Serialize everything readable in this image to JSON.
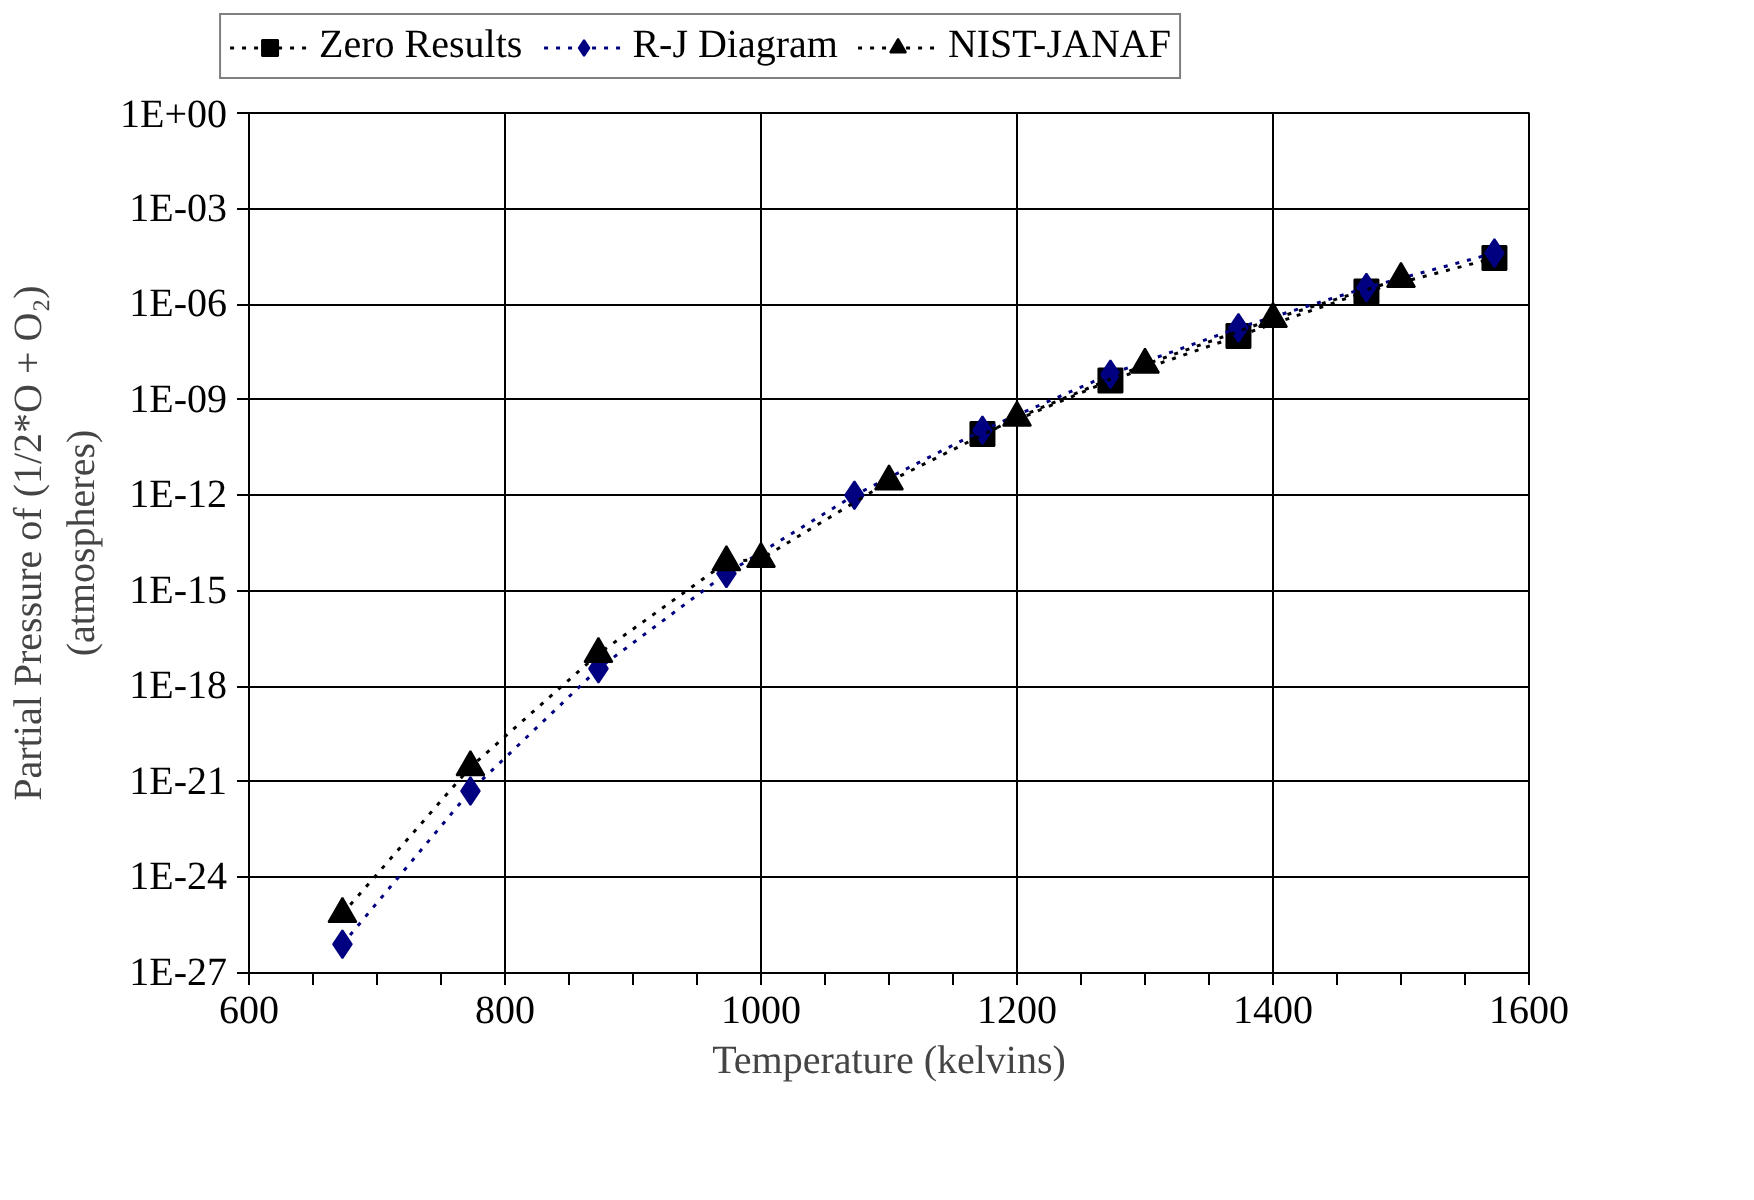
{
  "chart_data": {
    "type": "line",
    "xlabel": "Temperature (kelvins)",
    "ylabel": "Partial Pressure of (1/2*O + O₂)\n(atmospheres)",
    "log": "y",
    "grid": true,
    "legend": "top",
    "line_style": "dotted",
    "xlim": [
      600,
      1600
    ],
    "xticks": [
      600,
      800,
      1000,
      1200,
      1400,
      1600
    ],
    "ylim": [
      1e-27,
      1
    ],
    "yticks": [
      {
        "value": 1,
        "label": "1E+00"
      },
      {
        "value": 0.001,
        "label": "1E-03"
      },
      {
        "value": 1e-06,
        "label": "1E-06"
      },
      {
        "value": 1e-09,
        "label": "1E-09"
      },
      {
        "value": 1e-12,
        "label": "1E-12"
      },
      {
        "value": 1e-15,
        "label": "1E-15"
      },
      {
        "value": 1e-18,
        "label": "1E-18"
      },
      {
        "value": 1e-21,
        "label": "1E-21"
      },
      {
        "value": 1e-24,
        "label": "1E-24"
      },
      {
        "value": 1e-27,
        "label": "1E-27"
      }
    ],
    "series": [
      {
        "name": "Zero Results",
        "color": "#000000",
        "marker": "square",
        "x": [
          1173,
          1273,
          1373,
          1473,
          1573
        ],
        "values": [
          8.3e-11,
          4e-09,
          1e-07,
          2.5e-06,
          2.8e-05
        ]
      },
      {
        "name": "R-J Diagram",
        "color": "#000080",
        "marker": "diamond",
        "x": [
          673,
          773,
          873,
          973,
          1073,
          1173,
          1273,
          1373,
          1473,
          1573
        ],
        "values": [
          8e-27,
          5.2e-22,
          3.6e-18,
          3.5e-15,
          1e-12,
          1.1e-10,
          6.3e-09,
          1.8e-07,
          3.3e-06,
          4e-05
        ]
      },
      {
        "name": "NIST-JANAF",
        "color": "#000000",
        "marker": "triangle",
        "x": [
          673,
          773,
          873,
          973,
          1000,
          1100,
          1200,
          1300,
          1400,
          1500
        ],
        "values": [
          7.2e-26,
          2.9e-21,
          1.05e-17,
          7.9e-15,
          1e-14,
          2.7e-12,
          2.7e-10,
          1.26e-08,
          3.4e-07,
          6.2e-06
        ]
      }
    ]
  }
}
